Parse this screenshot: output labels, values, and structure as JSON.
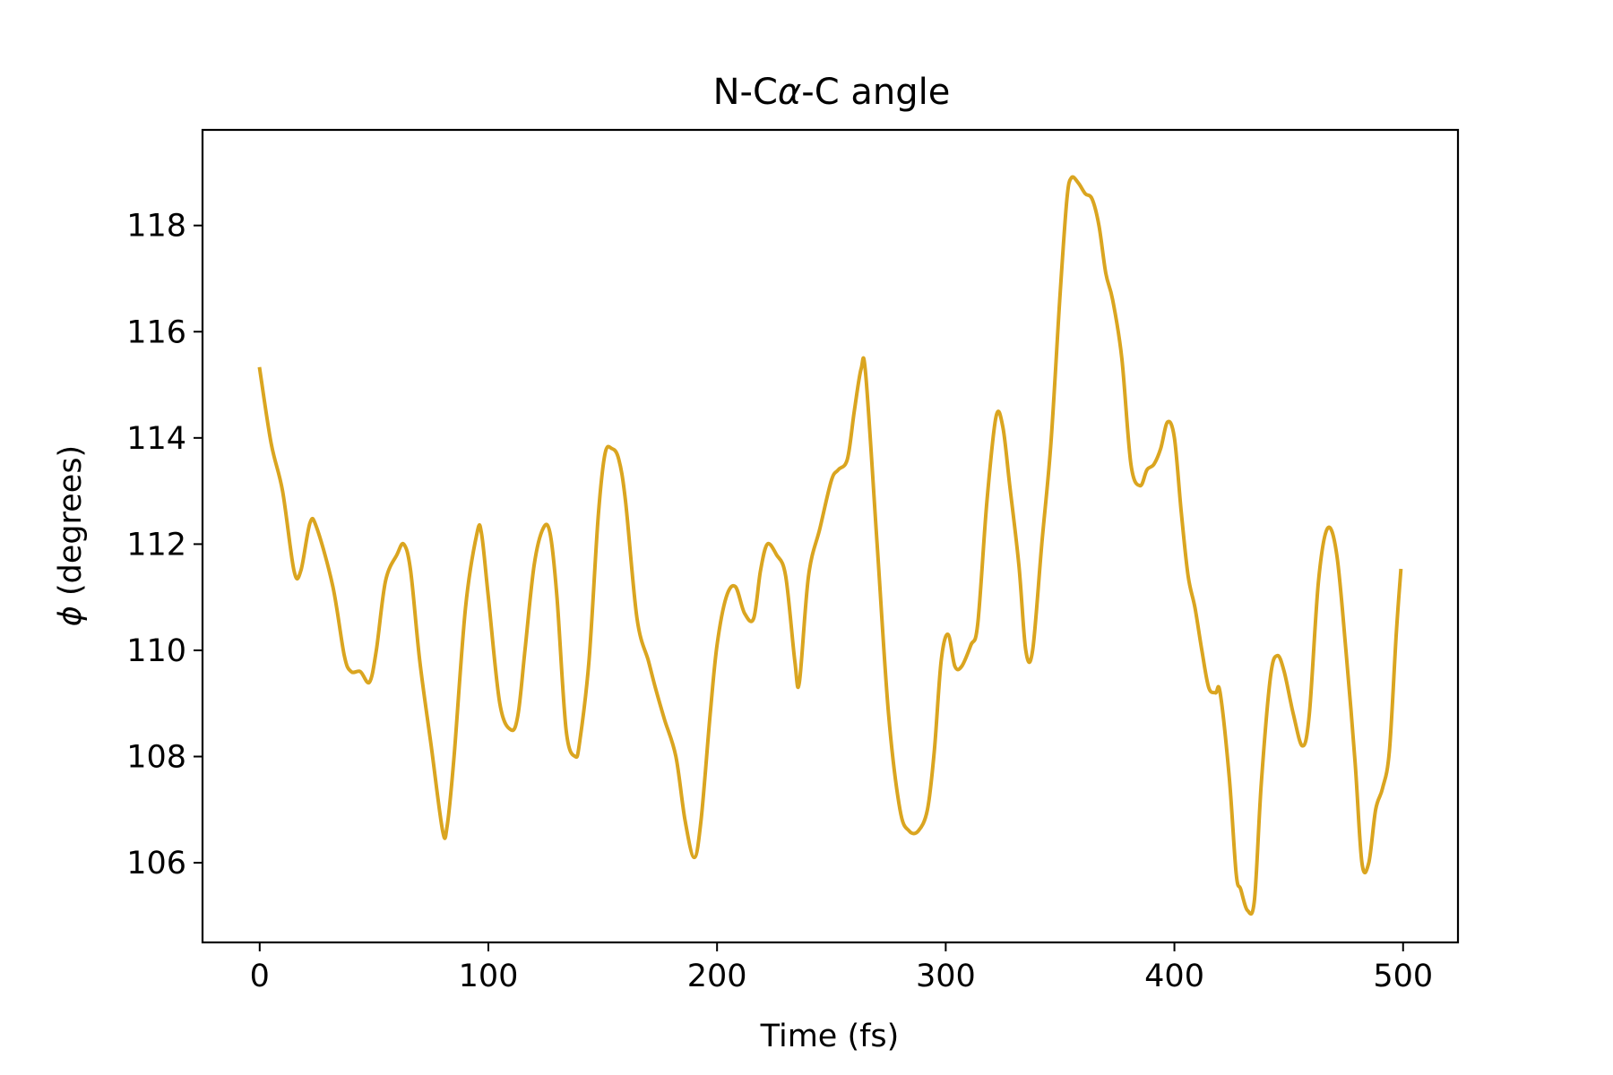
{
  "chart_data": {
    "type": "line",
    "title_prefix": "N-C",
    "title_alpha": "α",
    "title_suffix": "-C angle",
    "xlabel": "Time (fs)",
    "ylabel_symbol": "ϕ",
    "ylabel_rest": " (degrees)",
    "xlim": [
      -25,
      524
    ],
    "ylim": [
      104.5,
      119.8
    ],
    "grid": false,
    "legend": "none",
    "xticks": [
      0,
      100,
      200,
      300,
      400,
      500
    ],
    "yticks": [
      106,
      108,
      110,
      112,
      114,
      116,
      118
    ],
    "series": [
      {
        "color": "#DAA520",
        "x": [
          0,
          5,
          10,
          15,
          18,
          22,
          25,
          32,
          37,
          40,
          44,
          48,
          51,
          55,
          60,
          63,
          66,
          70,
          75,
          80,
          82,
          85,
          90,
          95,
          97,
          100,
          105,
          110,
          113,
          116,
          120,
          124,
          127,
          130,
          134,
          138,
          140,
          144,
          148,
          151,
          154,
          157,
          160,
          165,
          170,
          173,
          177,
          182,
          186,
          190,
          193,
          197,
          200,
          204,
          208,
          212,
          216,
          219,
          222,
          226,
          230,
          234,
          236,
          240,
          245,
          250,
          253,
          257,
          260,
          263,
          265,
          270,
          275,
          280,
          284,
          288,
          292,
          295,
          298,
          301,
          304,
          307,
          311,
          314,
          318,
          322,
          325,
          328,
          332,
          335,
          338,
          342,
          346,
          350,
          353,
          355,
          358,
          361,
          364,
          367,
          370,
          373,
          377,
          381,
          385,
          388,
          391,
          394,
          397,
          400,
          403,
          406,
          409,
          412,
          415,
          418,
          420,
          424,
          427,
          429,
          432,
          435,
          438,
          442,
          445,
          448,
          452,
          456,
          459,
          463,
          467,
          471,
          475,
          479,
          482,
          485,
          488,
          491,
          494,
          497,
          499
        ],
        "y": [
          115.3,
          113.9,
          113.0,
          111.5,
          111.5,
          112.4,
          112.3,
          111.2,
          109.9,
          109.6,
          109.6,
          109.4,
          110.0,
          111.3,
          111.8,
          112.0,
          111.5,
          109.8,
          108.2,
          106.6,
          106.7,
          108.0,
          110.8,
          112.2,
          112.2,
          111.0,
          109.0,
          108.5,
          108.8,
          110.0,
          111.6,
          112.3,
          112.2,
          111.0,
          108.5,
          108.0,
          108.3,
          109.8,
          112.5,
          113.7,
          113.8,
          113.6,
          112.8,
          110.6,
          109.8,
          109.3,
          108.7,
          108.0,
          106.8,
          106.1,
          106.8,
          108.8,
          110.1,
          111.0,
          111.2,
          110.7,
          110.6,
          111.5,
          112.0,
          111.8,
          111.4,
          109.8,
          109.4,
          111.4,
          112.3,
          113.2,
          113.4,
          113.6,
          114.5,
          115.3,
          115.2,
          112.0,
          108.8,
          107.0,
          106.6,
          106.6,
          107.0,
          108.1,
          109.8,
          110.3,
          109.7,
          109.7,
          110.1,
          110.5,
          112.8,
          114.4,
          114.2,
          113.1,
          111.6,
          110.0,
          110.0,
          112.0,
          113.9,
          116.7,
          118.5,
          118.9,
          118.8,
          118.6,
          118.5,
          118.0,
          117.1,
          116.6,
          115.5,
          113.5,
          113.1,
          113.4,
          113.5,
          113.8,
          114.3,
          114.0,
          112.6,
          111.4,
          110.8,
          110.0,
          109.3,
          109.2,
          109.2,
          107.6,
          105.8,
          105.5,
          105.1,
          105.3,
          107.5,
          109.5,
          109.9,
          109.6,
          108.8,
          108.2,
          108.8,
          111.3,
          112.3,
          111.8,
          110.0,
          107.9,
          106.0,
          106.0,
          107.0,
          107.4,
          108.1,
          110.3,
          111.5
        ]
      }
    ]
  }
}
